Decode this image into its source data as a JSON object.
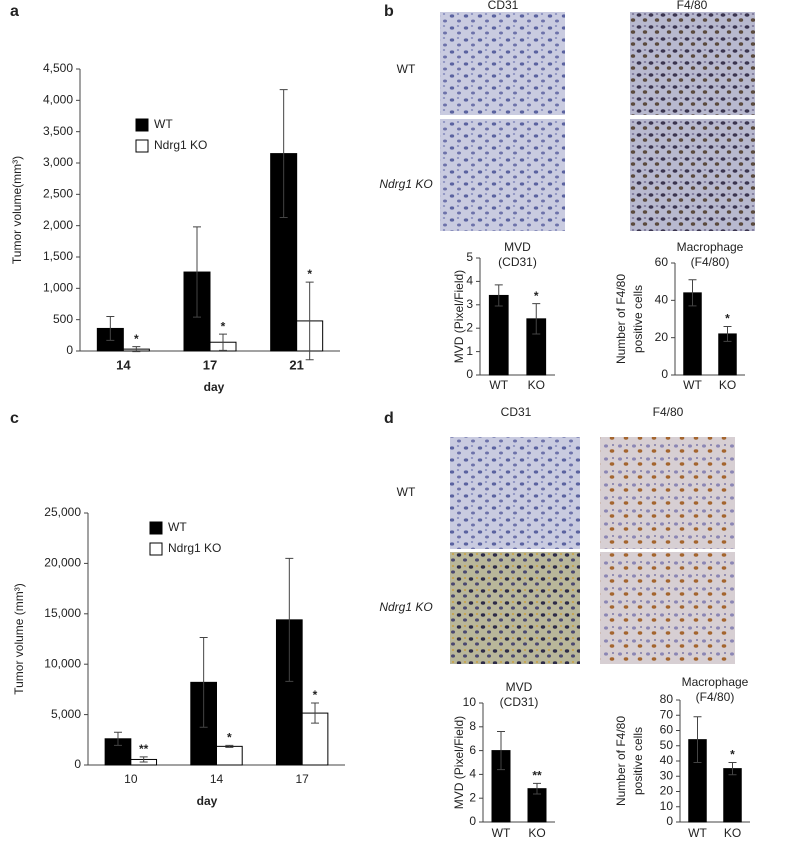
{
  "panel_labels": [
    "a",
    "b",
    "c",
    "d"
  ],
  "image_panels": [
    {
      "columns": [
        "CD31",
        "F4/80"
      ],
      "rows": [
        "WT",
        "Ndrg1 KO"
      ]
    },
    {
      "columns": [
        "CD31",
        "F4/80"
      ],
      "rows": [
        "WT",
        "Ndrg1 KO"
      ]
    }
  ],
  "chart_data": [
    {
      "type": "bar",
      "ylabel": [
        "Tumor volume(mm³)"
      ],
      "xlabel": "day",
      "categories": [
        "14",
        "17",
        "21"
      ],
      "series": [
        {
          "name": "WT",
          "color": "#000000",
          "values": [
            360,
            1260,
            3150
          ],
          "errors": [
            190,
            720,
            1020
          ],
          "significance": [
            null,
            null,
            null
          ]
        },
        {
          "name": "Ndrg1 KO",
          "color": "#ffffff",
          "values": [
            30,
            140,
            480
          ],
          "errors": [
            40,
            130,
            620
          ],
          "significance": [
            "*",
            "*",
            "*"
          ]
        }
      ],
      "ylim": [
        0,
        4500
      ],
      "yticks": [
        0,
        500,
        {
          "value": 1000,
          "label": "1,000"
        },
        {
          "value": 1500,
          "label": "1,500"
        },
        {
          "value": 2000,
          "label": "2,000"
        },
        {
          "value": 2500,
          "label": "2,500"
        },
        {
          "value": 3000,
          "label": "3,000"
        },
        {
          "value": 3500,
          "label": "3,500"
        },
        {
          "value": 4000,
          "label": "4,000"
        },
        {
          "value": 4500,
          "label": "4,500"
        }
      ]
    },
    {
      "type": "bar",
      "title": "MVD",
      "subtitle": "(CD31)",
      "ylabel": [
        "MVD (Pixel/Field)"
      ],
      "categories": [
        "WT",
        "KO"
      ],
      "color": "#000000",
      "values": [
        3.4,
        2.4
      ],
      "errors": [
        0.45,
        0.65
      ],
      "significance": [
        null,
        "*"
      ],
      "ylim": [
        0,
        5
      ],
      "yticks": [
        0,
        1,
        2,
        3,
        4,
        5
      ]
    },
    {
      "type": "bar",
      "title": "Macrophage",
      "subtitle": "(F4/80)",
      "ylabel": [
        "Number of F4/80",
        "positive cells"
      ],
      "categories": [
        "WT",
        "KO"
      ],
      "color": "#000000",
      "values": [
        44,
        22
      ],
      "errors": [
        7,
        4
      ],
      "significance": [
        null,
        "*"
      ],
      "ylim": [
        0,
        60
      ],
      "yticks": [
        0,
        20,
        40,
        60
      ]
    },
    {
      "type": "bar",
      "ylabel": [
        "Tumor volume (mm³)"
      ],
      "xlabel": "day",
      "categories": [
        "10",
        "14",
        "17"
      ],
      "series": [
        {
          "name": "WT",
          "color": "#000000",
          "values": [
            2600,
            8200,
            14400
          ],
          "errors": [
            650,
            4450,
            6100
          ],
          "significance": [
            null,
            null,
            null
          ]
        },
        {
          "name": "Ndrg1 KO",
          "color": "#ffffff",
          "values": [
            550,
            1850,
            5150
          ],
          "errors": [
            250,
            100,
            1000
          ],
          "significance": [
            "**",
            "*",
            "*"
          ]
        }
      ],
      "ylim": [
        0,
        25000
      ],
      "yticks": [
        0,
        {
          "value": 5000,
          "label": "5,000"
        },
        {
          "value": 10000,
          "label": "10,000"
        },
        {
          "value": 15000,
          "label": "15,000"
        },
        {
          "value": 20000,
          "label": "20,000"
        },
        {
          "value": 25000,
          "label": "25,000"
        }
      ]
    },
    {
      "type": "bar",
      "title": "MVD",
      "subtitle": "(CD31)",
      "ylabel": [
        "MVD (Pixel/Field)"
      ],
      "categories": [
        "WT",
        "KO"
      ],
      "color": "#000000",
      "values": [
        6.0,
        2.8
      ],
      "errors": [
        1.6,
        0.45
      ],
      "significance": [
        null,
        "**"
      ],
      "ylim": [
        0,
        10
      ],
      "yticks": [
        0,
        2,
        4,
        6,
        8,
        10
      ]
    },
    {
      "type": "bar",
      "title": "Macrophage",
      "subtitle": "(F4/80)",
      "ylabel": [
        "Number of F4/80",
        "positive cells"
      ],
      "categories": [
        "WT",
        "KO"
      ],
      "color": "#000000",
      "values": [
        54,
        35
      ],
      "errors": [
        15,
        4
      ],
      "significance": [
        null,
        "*"
      ],
      "ylim": [
        0,
        80
      ],
      "yticks": [
        0,
        10,
        20,
        30,
        40,
        50,
        60,
        70,
        80
      ]
    }
  ]
}
